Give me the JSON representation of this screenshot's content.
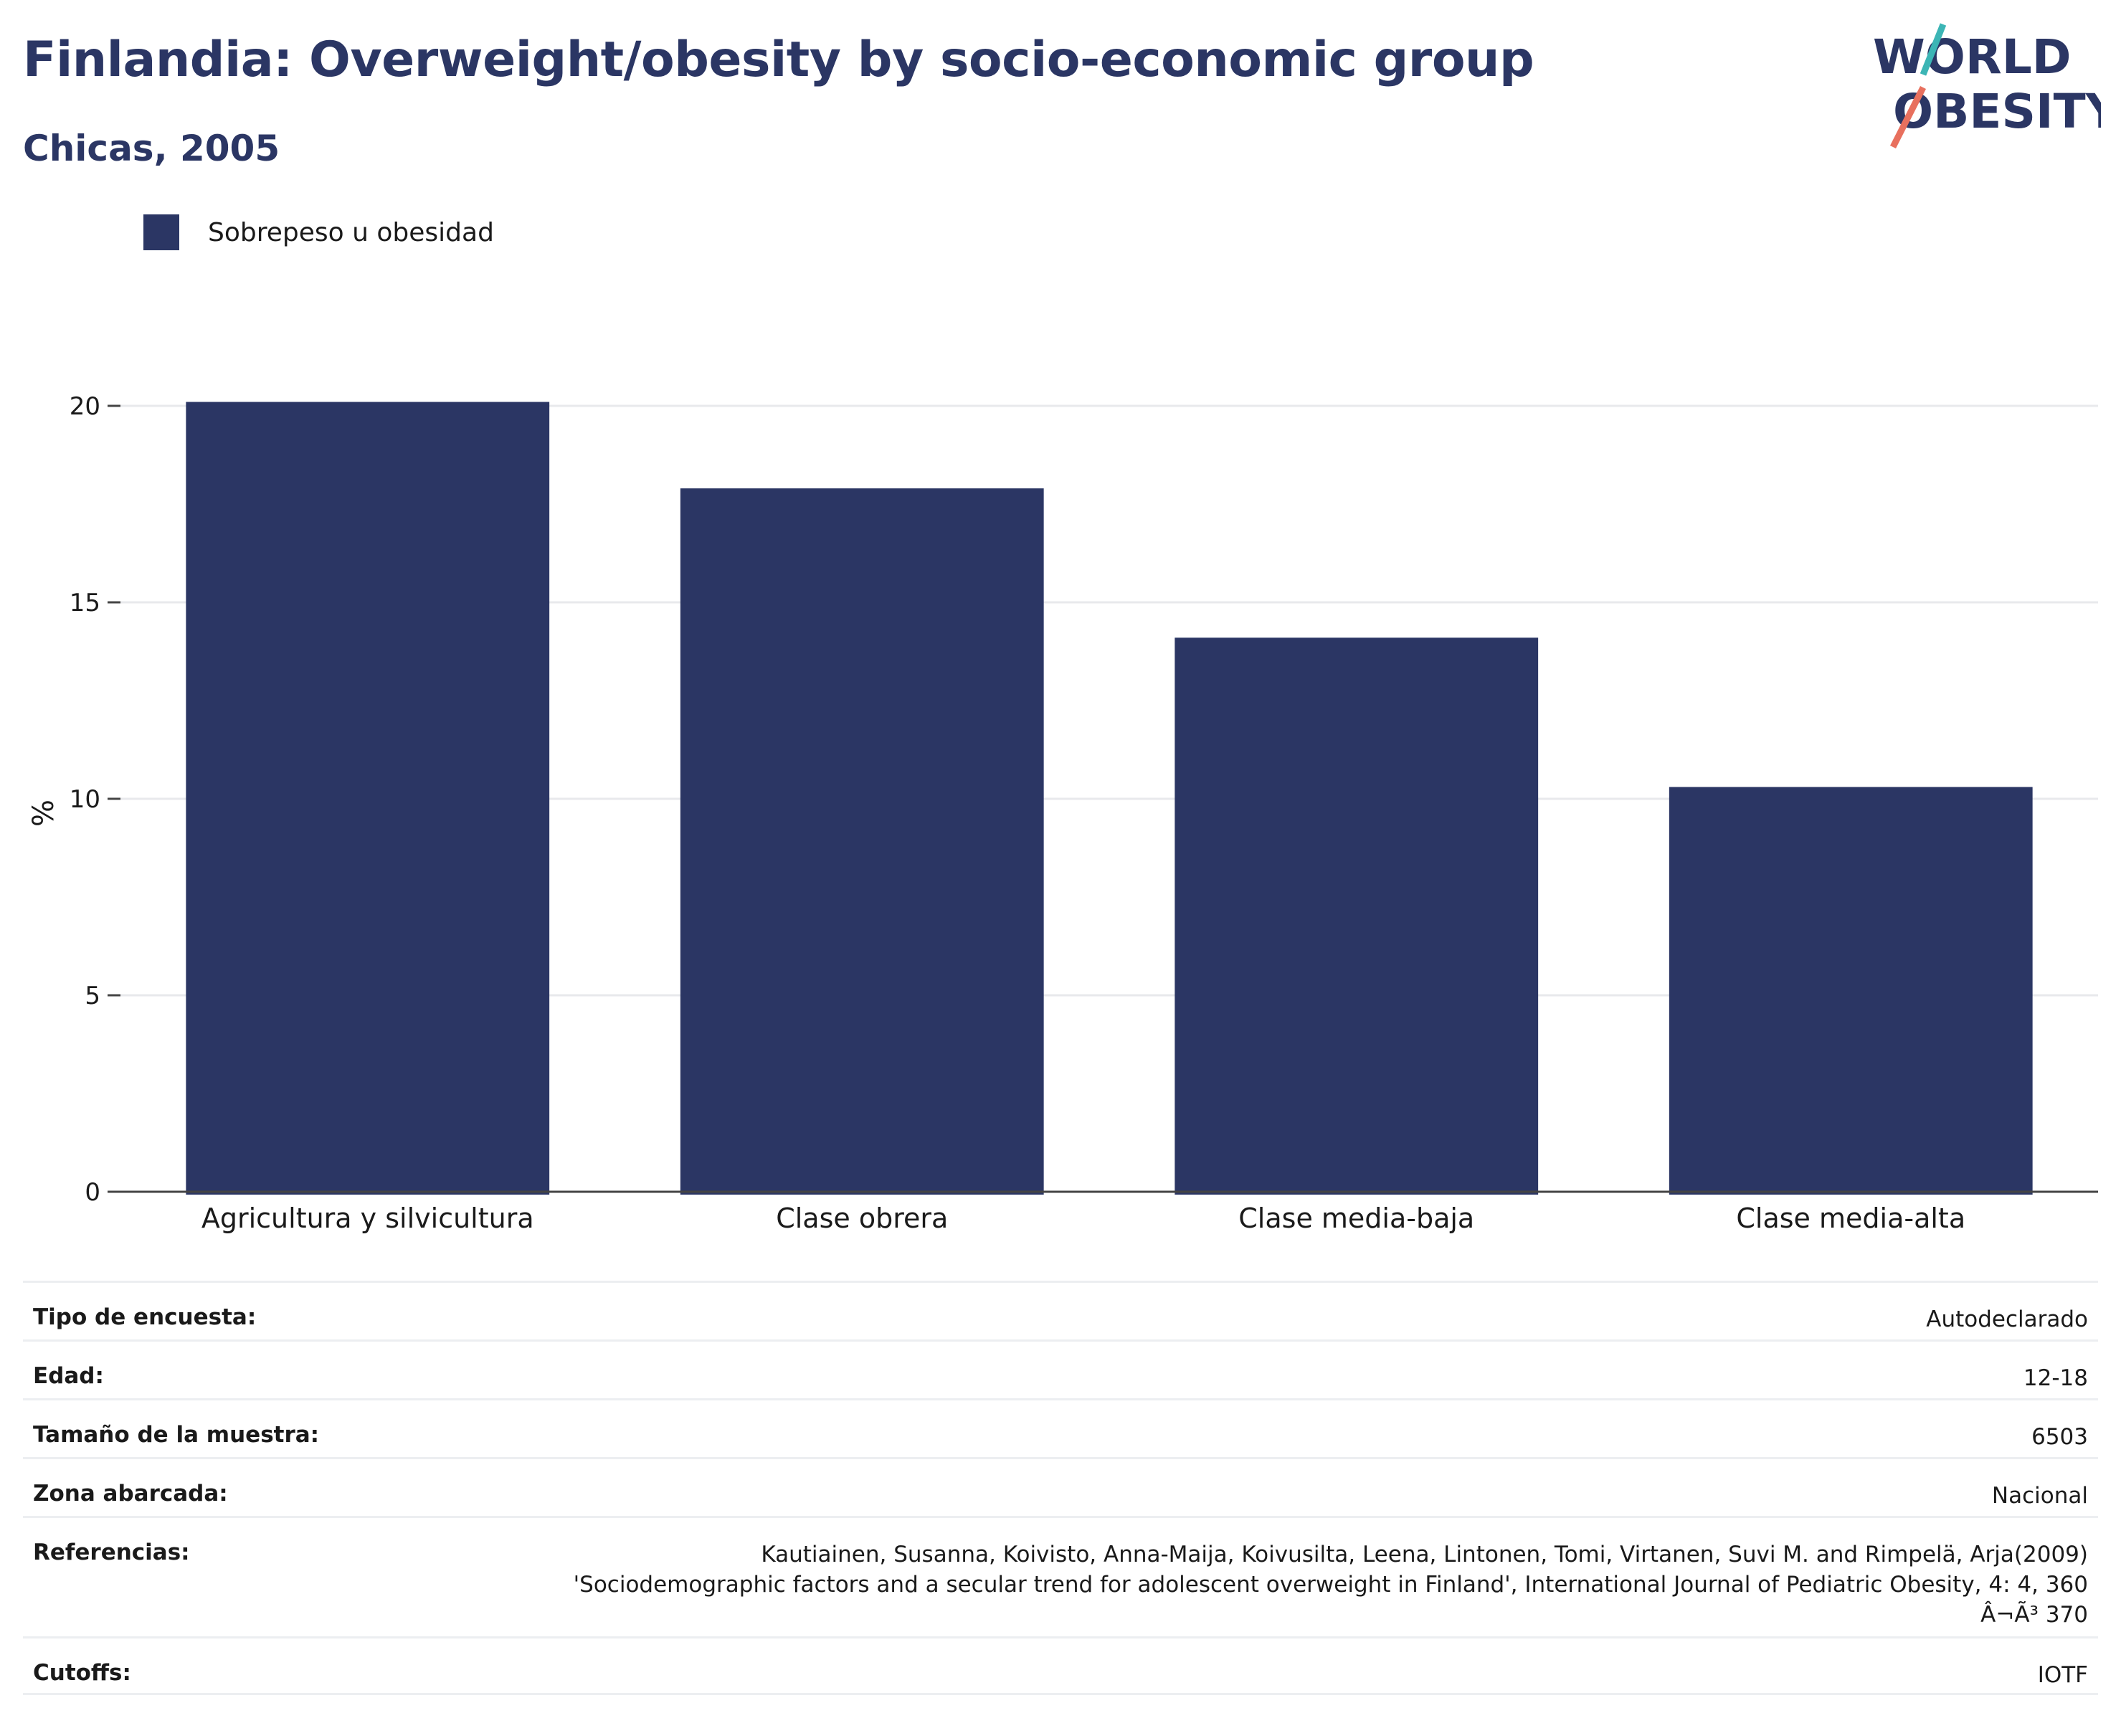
{
  "header": {
    "title": "Finlandia: Overweight/obesity by socio-economic group",
    "subtitle": "Chicas, 2005"
  },
  "logo": {
    "line1": "WORLD",
    "line2": "OBESITY"
  },
  "colors": {
    "navy": "#2b3664",
    "accent_teal": "#3cb5b5",
    "accent_coral": "#e8705e"
  },
  "legend": {
    "label": "Sobrepeso u obesidad"
  },
  "chart_data": {
    "type": "bar",
    "categories": [
      "Agricultura y silvicultura",
      "Clase obrera",
      "Clase media-baja",
      "Clase media-alta"
    ],
    "series": [
      {
        "name": "Sobrepeso u obesidad",
        "values": [
          20.1,
          17.9,
          14.1,
          10.3
        ]
      }
    ],
    "ylabel": "%",
    "ylim": [
      0,
      20
    ],
    "yticks": [
      0,
      5,
      10,
      15,
      20
    ],
    "grid": true,
    "legend_position": "top-left"
  },
  "info": [
    {
      "key": "Tipo de encuesta:",
      "value": "Autodeclarado"
    },
    {
      "key": "Edad:",
      "value": "12-18"
    },
    {
      "key": "Tamaño de la muestra:",
      "value": "6503"
    },
    {
      "key": "Zona abarcada:",
      "value": "Nacional"
    },
    {
      "key": "Referencias:",
      "value": "Kautiainen, Susanna, Koivisto, Anna-Maija, Koivusilta, Leena, Lintonen, Tomi, Virtanen, Suvi M. and Rimpelä, Arja(2009)\n'Sociodemographic factors and a secular trend for adolescent overweight in Finland', International Journal of Pediatric Obesity, 4: 4, 360\nÂ¬Ã³ 370"
    },
    {
      "key": "Cutoffs:",
      "value": "IOTF"
    }
  ]
}
